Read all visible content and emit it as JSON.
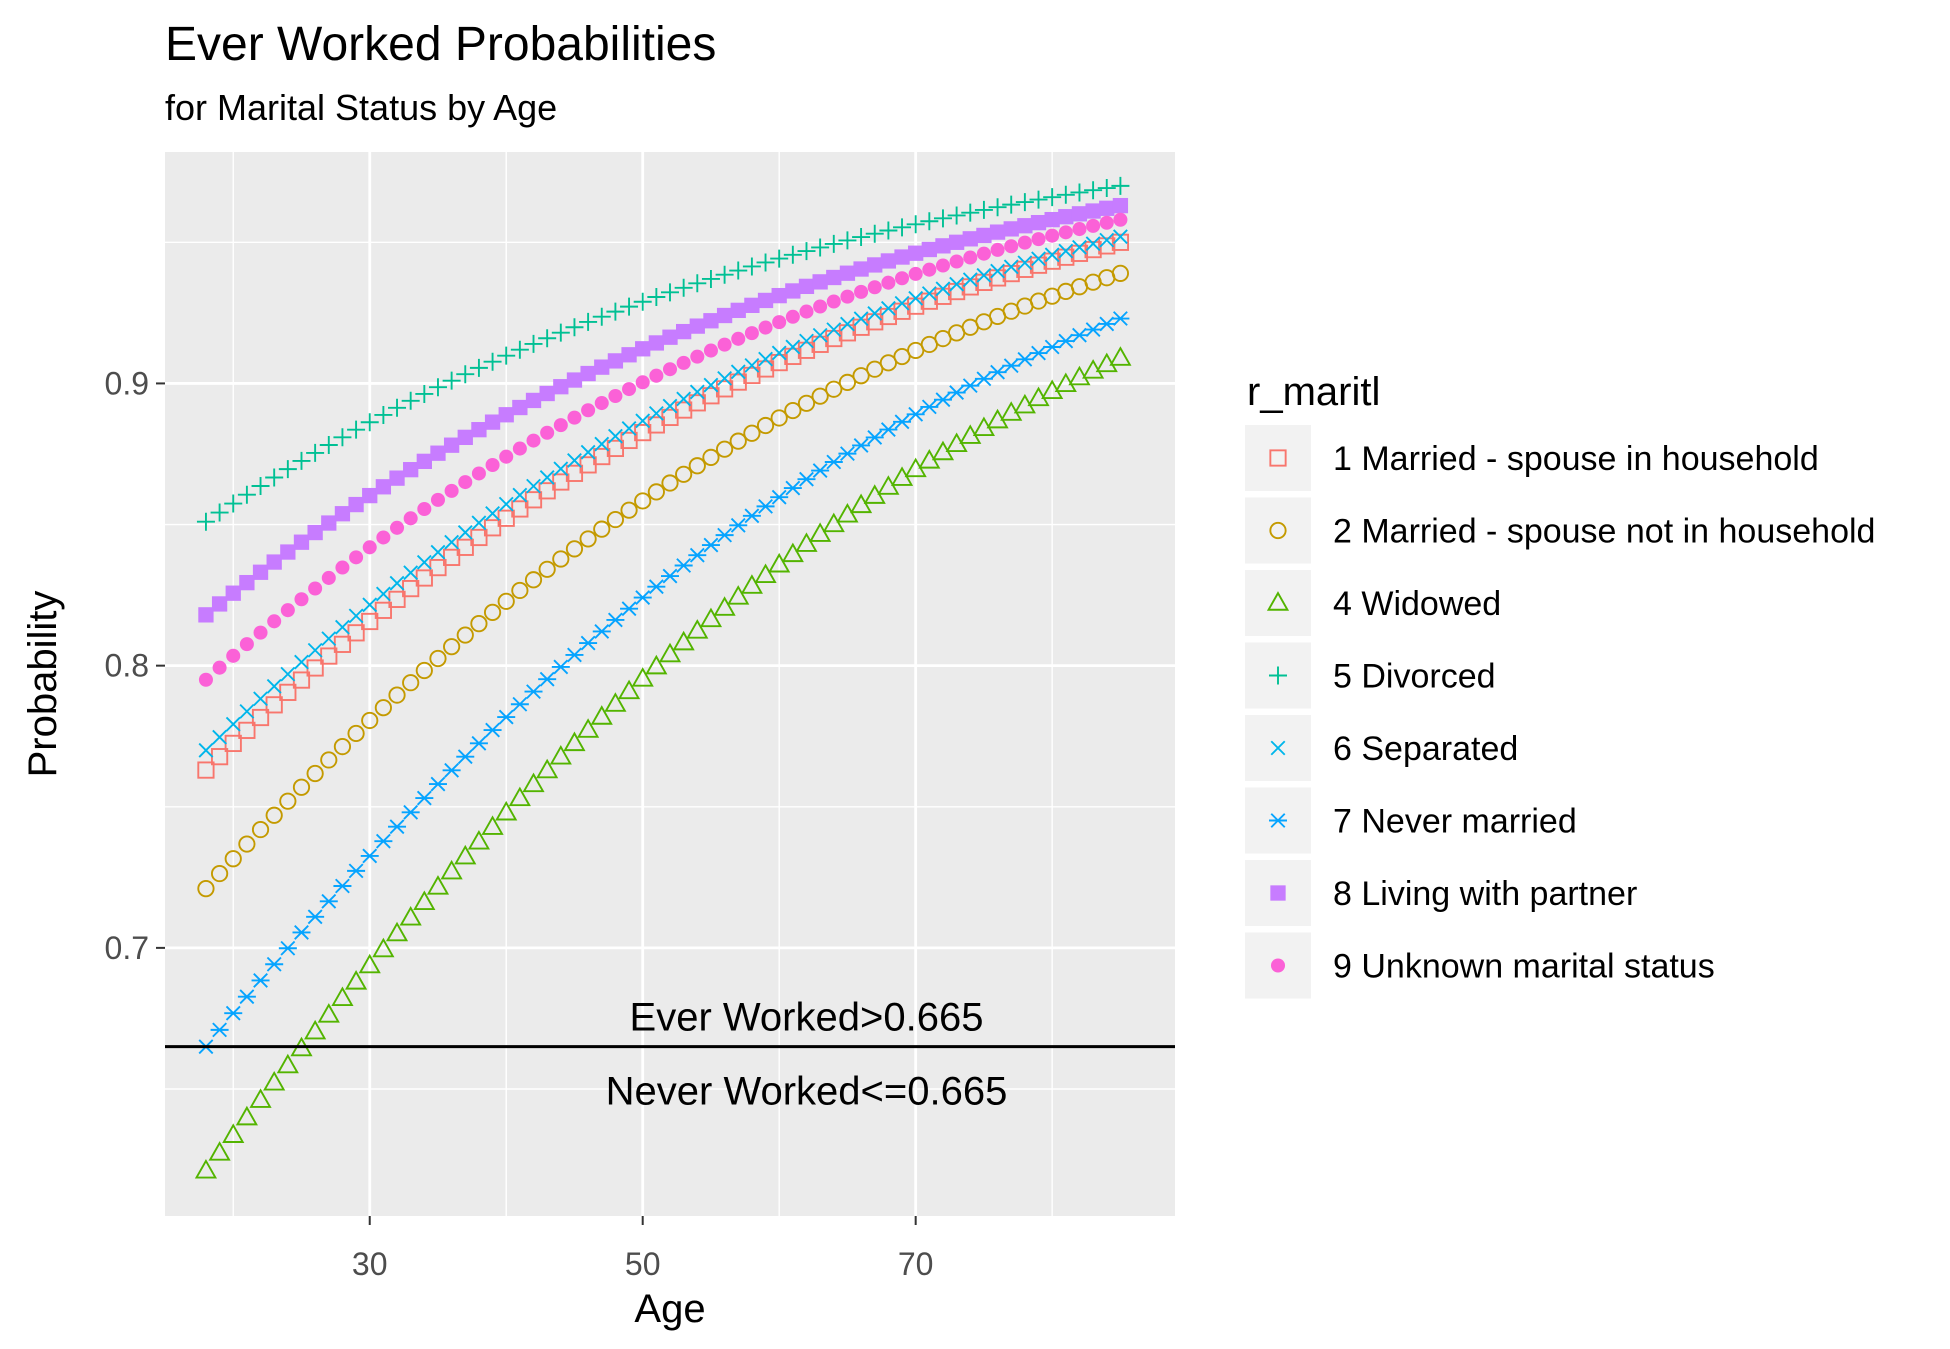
{
  "chart_data": {
    "type": "scatter",
    "title": "Ever Worked Probabilities",
    "subtitle": "for Marital Status by Age",
    "xlabel": "Age",
    "ylabel": "Probability",
    "xlim": [
      15,
      89
    ],
    "ylim": [
      0.605,
      0.982
    ],
    "x_ticks": [
      30,
      50,
      70
    ],
    "y_ticks": [
      0.7,
      0.8,
      0.9
    ],
    "x_tick_labels": [
      "30",
      "50",
      "70"
    ],
    "y_tick_labels": [
      "0.7",
      "0.8",
      "0.9"
    ],
    "grid": true,
    "background": "#ebebeb",
    "x_range": [
      18,
      85
    ],
    "threshold": {
      "value": 0.665,
      "label_above": "Ever Worked>0.665",
      "label_below": "Never Worked<=0.665"
    },
    "legend_title": "r_maritl",
    "legend_position": "right",
    "series": [
      {
        "name": "1 Married - spouse in household",
        "shape": "square-open",
        "color": "#F8766D",
        "start": 0.763,
        "end": 0.95
      },
      {
        "name": "2 Married - spouse not in household",
        "shape": "circle-open",
        "color": "#C49A00",
        "start": 0.721,
        "end": 0.939
      },
      {
        "name": "4 Widowed",
        "shape": "triangle-open",
        "color": "#53B400",
        "start": 0.621,
        "end": 0.909
      },
      {
        "name": "5 Divorced",
        "shape": "plus",
        "color": "#00C094",
        "start": 0.851,
        "end": 0.97
      },
      {
        "name": "6 Separated",
        "shape": "cross",
        "color": "#00B6EB",
        "start": 0.77,
        "end": 0.952
      },
      {
        "name": "7 Never married",
        "shape": "asterisk",
        "color": "#06A4FF",
        "start": 0.665,
        "end": 0.923
      },
      {
        "name": "8 Living with partner",
        "shape": "square-filled",
        "color": "#C77CFF",
        "start": 0.818,
        "end": 0.963
      },
      {
        "name": "9 Unknown marital status",
        "shape": "circle-filled",
        "color": "#FB61D7",
        "start": 0.795,
        "end": 0.958
      }
    ]
  }
}
